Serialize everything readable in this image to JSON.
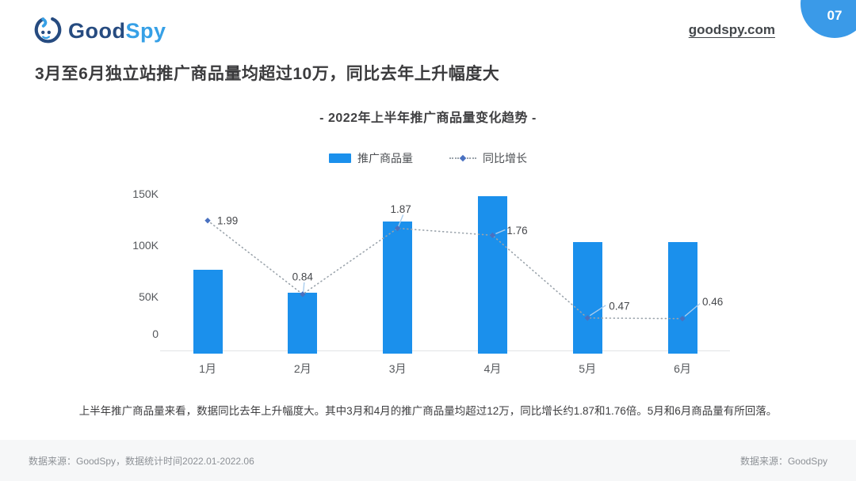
{
  "header": {
    "brand": {
      "good": "Good",
      "spy": "Spy"
    },
    "site_link": "goodspy.com",
    "page_number": "07"
  },
  "headline": "3月至6月独立站推广商品量均超过10万，同比去年上升幅度大",
  "chart": {
    "title": "- 2022年上半年推广商品量变化趋势 -",
    "legend": {
      "bar_label": "推广商品量",
      "line_label": "同比增长"
    }
  },
  "chart_data": {
    "type": "bar",
    "title": "- 2022年上半年推广商品量变化趋势 -",
    "categories": [
      "1月",
      "2月",
      "3月",
      "4月",
      "5月",
      "6月"
    ],
    "series": [
      {
        "name": "推广商品量",
        "type": "bar",
        "color": "#1b90ec",
        "values": [
          76000,
          54000,
          123000,
          148000,
          103000,
          103000
        ]
      },
      {
        "name": "同比增长",
        "type": "line",
        "style": "dotted",
        "color": "#9aa3ab",
        "marker": "diamond",
        "marker_color": "#4a71c0",
        "values": [
          1.99,
          0.84,
          1.87,
          1.76,
          0.47,
          0.46
        ],
        "labels": [
          "1.99",
          "0.84",
          "1.87",
          "1.76",
          "0.47",
          "0.46"
        ]
      }
    ],
    "y_axis": {
      "ticks": [
        "0",
        "50K",
        "100K",
        "150K"
      ],
      "range": [
        0,
        150000
      ],
      "label_color": "#55585c"
    },
    "y2_axis": {
      "range": [
        0,
        2.6
      ],
      "visible": false
    },
    "grid": false,
    "legend_position": "top"
  },
  "summary": "上半年推广商品量来看，数据同比去年上升幅度大。其中3月和4月的推广商品量均超过12万，同比增长约1.87和1.76倍。5月和6月商品量有所回落。",
  "footer": {
    "left": "数据来源：GoodSpy，数据统计时间2022.01-2022.06",
    "right": "数据来源：GoodSpy"
  },
  "colors": {
    "bar": "#1b90ec",
    "badge_blue": "#3a9ae8",
    "brand_navy": "#264b80",
    "brand_lightblue": "#36a0e6",
    "dotted_line": "#9aa3ab",
    "marker_diamond": "#4a71c0",
    "leader_line": "#a9cdee",
    "axis_line": "#e2e4e6"
  }
}
